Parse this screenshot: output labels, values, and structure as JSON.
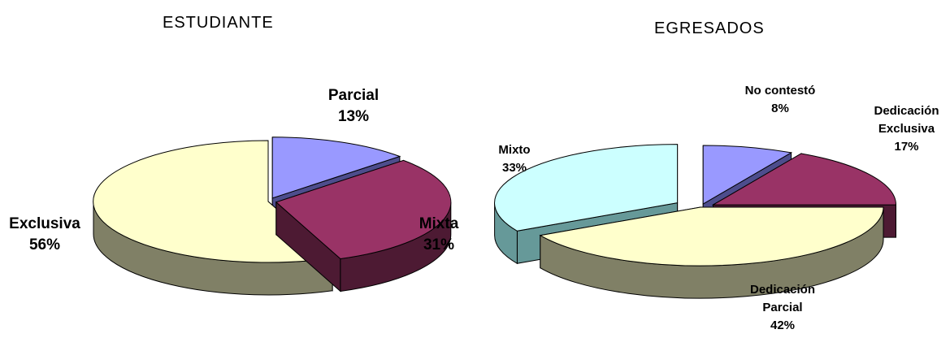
{
  "chart_data": [
    {
      "type": "pie",
      "title": "ESTUDIANTE",
      "style": "3d-exploded",
      "slices": [
        {
          "label": "Parcial",
          "percent_label": "13%",
          "value": 13,
          "top_color": "#9999ff",
          "side_color": "#4d4d8c"
        },
        {
          "label": "Mixta",
          "percent_label": "31%",
          "value": 31,
          "top_color": "#993366",
          "side_color": "#4d1a33"
        },
        {
          "label": "Exclusiva",
          "percent_label": "56%",
          "value": 56,
          "top_color": "#ffffcc",
          "side_color": "#808066"
        }
      ]
    },
    {
      "type": "pie",
      "title": "EGRESADOS",
      "style": "3d-exploded",
      "slices": [
        {
          "label_lines": [
            "No contestó"
          ],
          "percent_label": "8%",
          "value": 8,
          "top_color": "#9999ff",
          "side_color": "#4d4d8c"
        },
        {
          "label_lines": [
            "Dedicación",
            "Exclusiva"
          ],
          "percent_label": "17%",
          "value": 17,
          "top_color": "#993366",
          "side_color": "#4d1a33"
        },
        {
          "label_lines": [
            "Dedicación",
            "Parcial"
          ],
          "percent_label": "42%",
          "value": 42,
          "top_color": "#ffffcc",
          "side_color": "#808066"
        },
        {
          "label_lines": [
            "Mixto"
          ],
          "percent_label": "33%",
          "value": 33,
          "top_color": "#ccffff",
          "side_color": "#669999"
        }
      ]
    }
  ]
}
